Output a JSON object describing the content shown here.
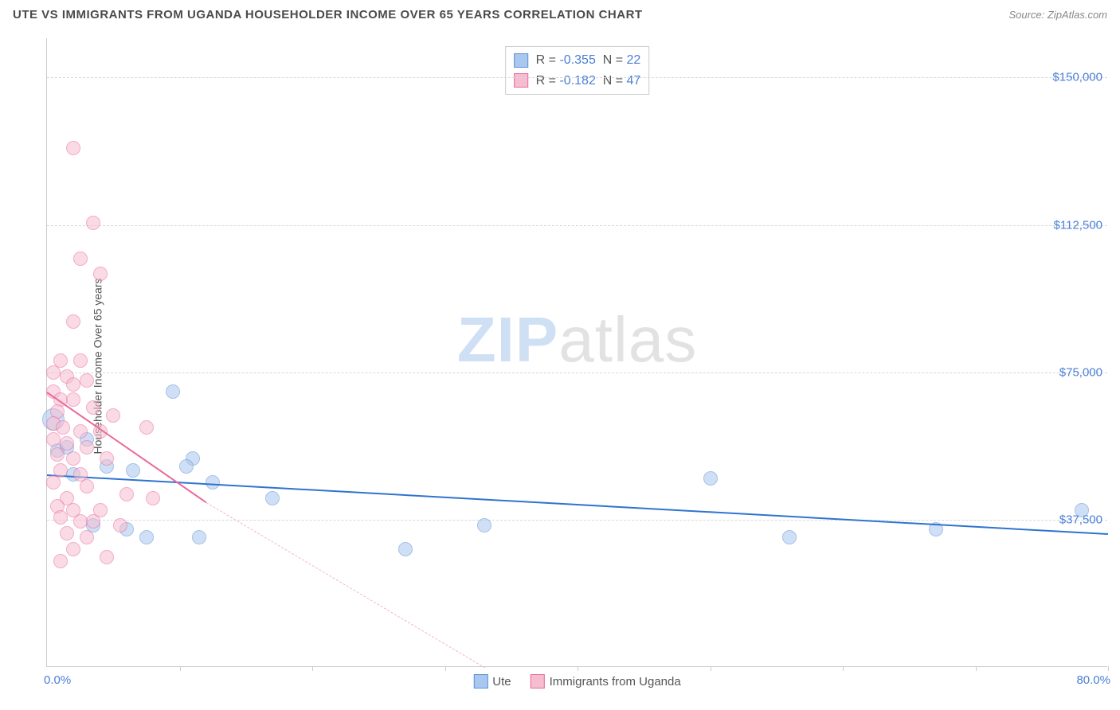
{
  "title": "UTE VS IMMIGRANTS FROM UGANDA HOUSEHOLDER INCOME OVER 65 YEARS CORRELATION CHART",
  "source": "Source: ZipAtlas.com",
  "yaxis_label": "Householder Income Over 65 years",
  "watermark_a": "ZIP",
  "watermark_b": "atlas",
  "chart": {
    "type": "scatter",
    "xlim": [
      0,
      80
    ],
    "ylim": [
      0,
      160000
    ],
    "x_start_label": "0.0%",
    "x_end_label": "80.0%",
    "xtick_positions": [
      10,
      20,
      30,
      40,
      50,
      60,
      70,
      80
    ],
    "yticks": [
      {
        "v": 37500,
        "label": "$37,500"
      },
      {
        "v": 75000,
        "label": "$75,000"
      },
      {
        "v": 112500,
        "label": "$112,500"
      },
      {
        "v": 150000,
        "label": "$150,000"
      }
    ],
    "background_color": "#ffffff",
    "grid_color": "#d8d8d8",
    "marker_radius": 9,
    "marker_opacity": 0.55,
    "series": [
      {
        "name": "Ute",
        "color_fill": "#a9c8ef",
        "color_stroke": "#5b8fd8",
        "R": "-0.355",
        "N": "22",
        "trend": {
          "x1": 0,
          "y1": 49000,
          "x2": 80,
          "y2": 34000,
          "color": "#2e74d0",
          "width": 2.5,
          "dash": false
        },
        "points": [
          {
            "x": 0.5,
            "y": 63000,
            "r": 14
          },
          {
            "x": 0.8,
            "y": 55000
          },
          {
            "x": 1.5,
            "y": 56000
          },
          {
            "x": 3.0,
            "y": 58000
          },
          {
            "x": 9.5,
            "y": 70000
          },
          {
            "x": 2.0,
            "y": 49000
          },
          {
            "x": 4.5,
            "y": 51000
          },
          {
            "x": 6.5,
            "y": 50000
          },
          {
            "x": 11.0,
            "y": 53000
          },
          {
            "x": 10.5,
            "y": 51000
          },
          {
            "x": 12.5,
            "y": 47000
          },
          {
            "x": 17.0,
            "y": 43000
          },
          {
            "x": 27.0,
            "y": 30000
          },
          {
            "x": 11.5,
            "y": 33000
          },
          {
            "x": 6.0,
            "y": 35000
          },
          {
            "x": 7.5,
            "y": 33000
          },
          {
            "x": 3.5,
            "y": 36000
          },
          {
            "x": 33.0,
            "y": 36000
          },
          {
            "x": 50.0,
            "y": 48000
          },
          {
            "x": 56.0,
            "y": 33000
          },
          {
            "x": 67.0,
            "y": 35000
          },
          {
            "x": 78.0,
            "y": 40000
          }
        ]
      },
      {
        "name": "Immigrants from Uganda",
        "color_fill": "#f6bcd0",
        "color_stroke": "#ea6a9a",
        "R": "-0.182",
        "N": "47",
        "trend_solid": {
          "x1": 0,
          "y1": 70000,
          "x2": 12,
          "y2": 42000,
          "color": "#ea6a9a",
          "width": 2.5
        },
        "trend_dash": {
          "x1": 12,
          "y1": 42000,
          "x2": 33,
          "y2": 0,
          "color": "#f3b6c9",
          "width": 1.5
        },
        "points": [
          {
            "x": 2.0,
            "y": 132000
          },
          {
            "x": 3.5,
            "y": 113000
          },
          {
            "x": 2.5,
            "y": 104000
          },
          {
            "x": 4.0,
            "y": 100000
          },
          {
            "x": 2.0,
            "y": 88000
          },
          {
            "x": 1.0,
            "y": 78000
          },
          {
            "x": 2.5,
            "y": 78000
          },
          {
            "x": 0.5,
            "y": 75000
          },
          {
            "x": 1.5,
            "y": 74000
          },
          {
            "x": 2.0,
            "y": 72000
          },
          {
            "x": 3.0,
            "y": 73000
          },
          {
            "x": 0.5,
            "y": 70000
          },
          {
            "x": 1.0,
            "y": 68000
          },
          {
            "x": 2.0,
            "y": 68000
          },
          {
            "x": 0.8,
            "y": 65000
          },
          {
            "x": 3.5,
            "y": 66000
          },
          {
            "x": 5.0,
            "y": 64000
          },
          {
            "x": 0.5,
            "y": 62000
          },
          {
            "x": 1.2,
            "y": 61000
          },
          {
            "x": 2.5,
            "y": 60000
          },
          {
            "x": 4.0,
            "y": 60000
          },
          {
            "x": 7.5,
            "y": 61000
          },
          {
            "x": 0.5,
            "y": 58000
          },
          {
            "x": 1.5,
            "y": 57000
          },
          {
            "x": 3.0,
            "y": 56000
          },
          {
            "x": 0.8,
            "y": 54000
          },
          {
            "x": 2.0,
            "y": 53000
          },
          {
            "x": 4.5,
            "y": 53000
          },
          {
            "x": 1.0,
            "y": 50000
          },
          {
            "x": 2.5,
            "y": 49000
          },
          {
            "x": 0.5,
            "y": 47000
          },
          {
            "x": 3.0,
            "y": 46000
          },
          {
            "x": 6.0,
            "y": 44000
          },
          {
            "x": 1.5,
            "y": 43000
          },
          {
            "x": 8.0,
            "y": 43000
          },
          {
            "x": 0.8,
            "y": 41000
          },
          {
            "x": 2.0,
            "y": 40000
          },
          {
            "x": 4.0,
            "y": 40000
          },
          {
            "x": 1.0,
            "y": 38000
          },
          {
            "x": 2.5,
            "y": 37000
          },
          {
            "x": 3.5,
            "y": 37000
          },
          {
            "x": 5.5,
            "y": 36000
          },
          {
            "x": 1.5,
            "y": 34000
          },
          {
            "x": 3.0,
            "y": 33000
          },
          {
            "x": 2.0,
            "y": 30000
          },
          {
            "x": 4.5,
            "y": 28000
          },
          {
            "x": 1.0,
            "y": 27000
          }
        ]
      }
    ]
  }
}
